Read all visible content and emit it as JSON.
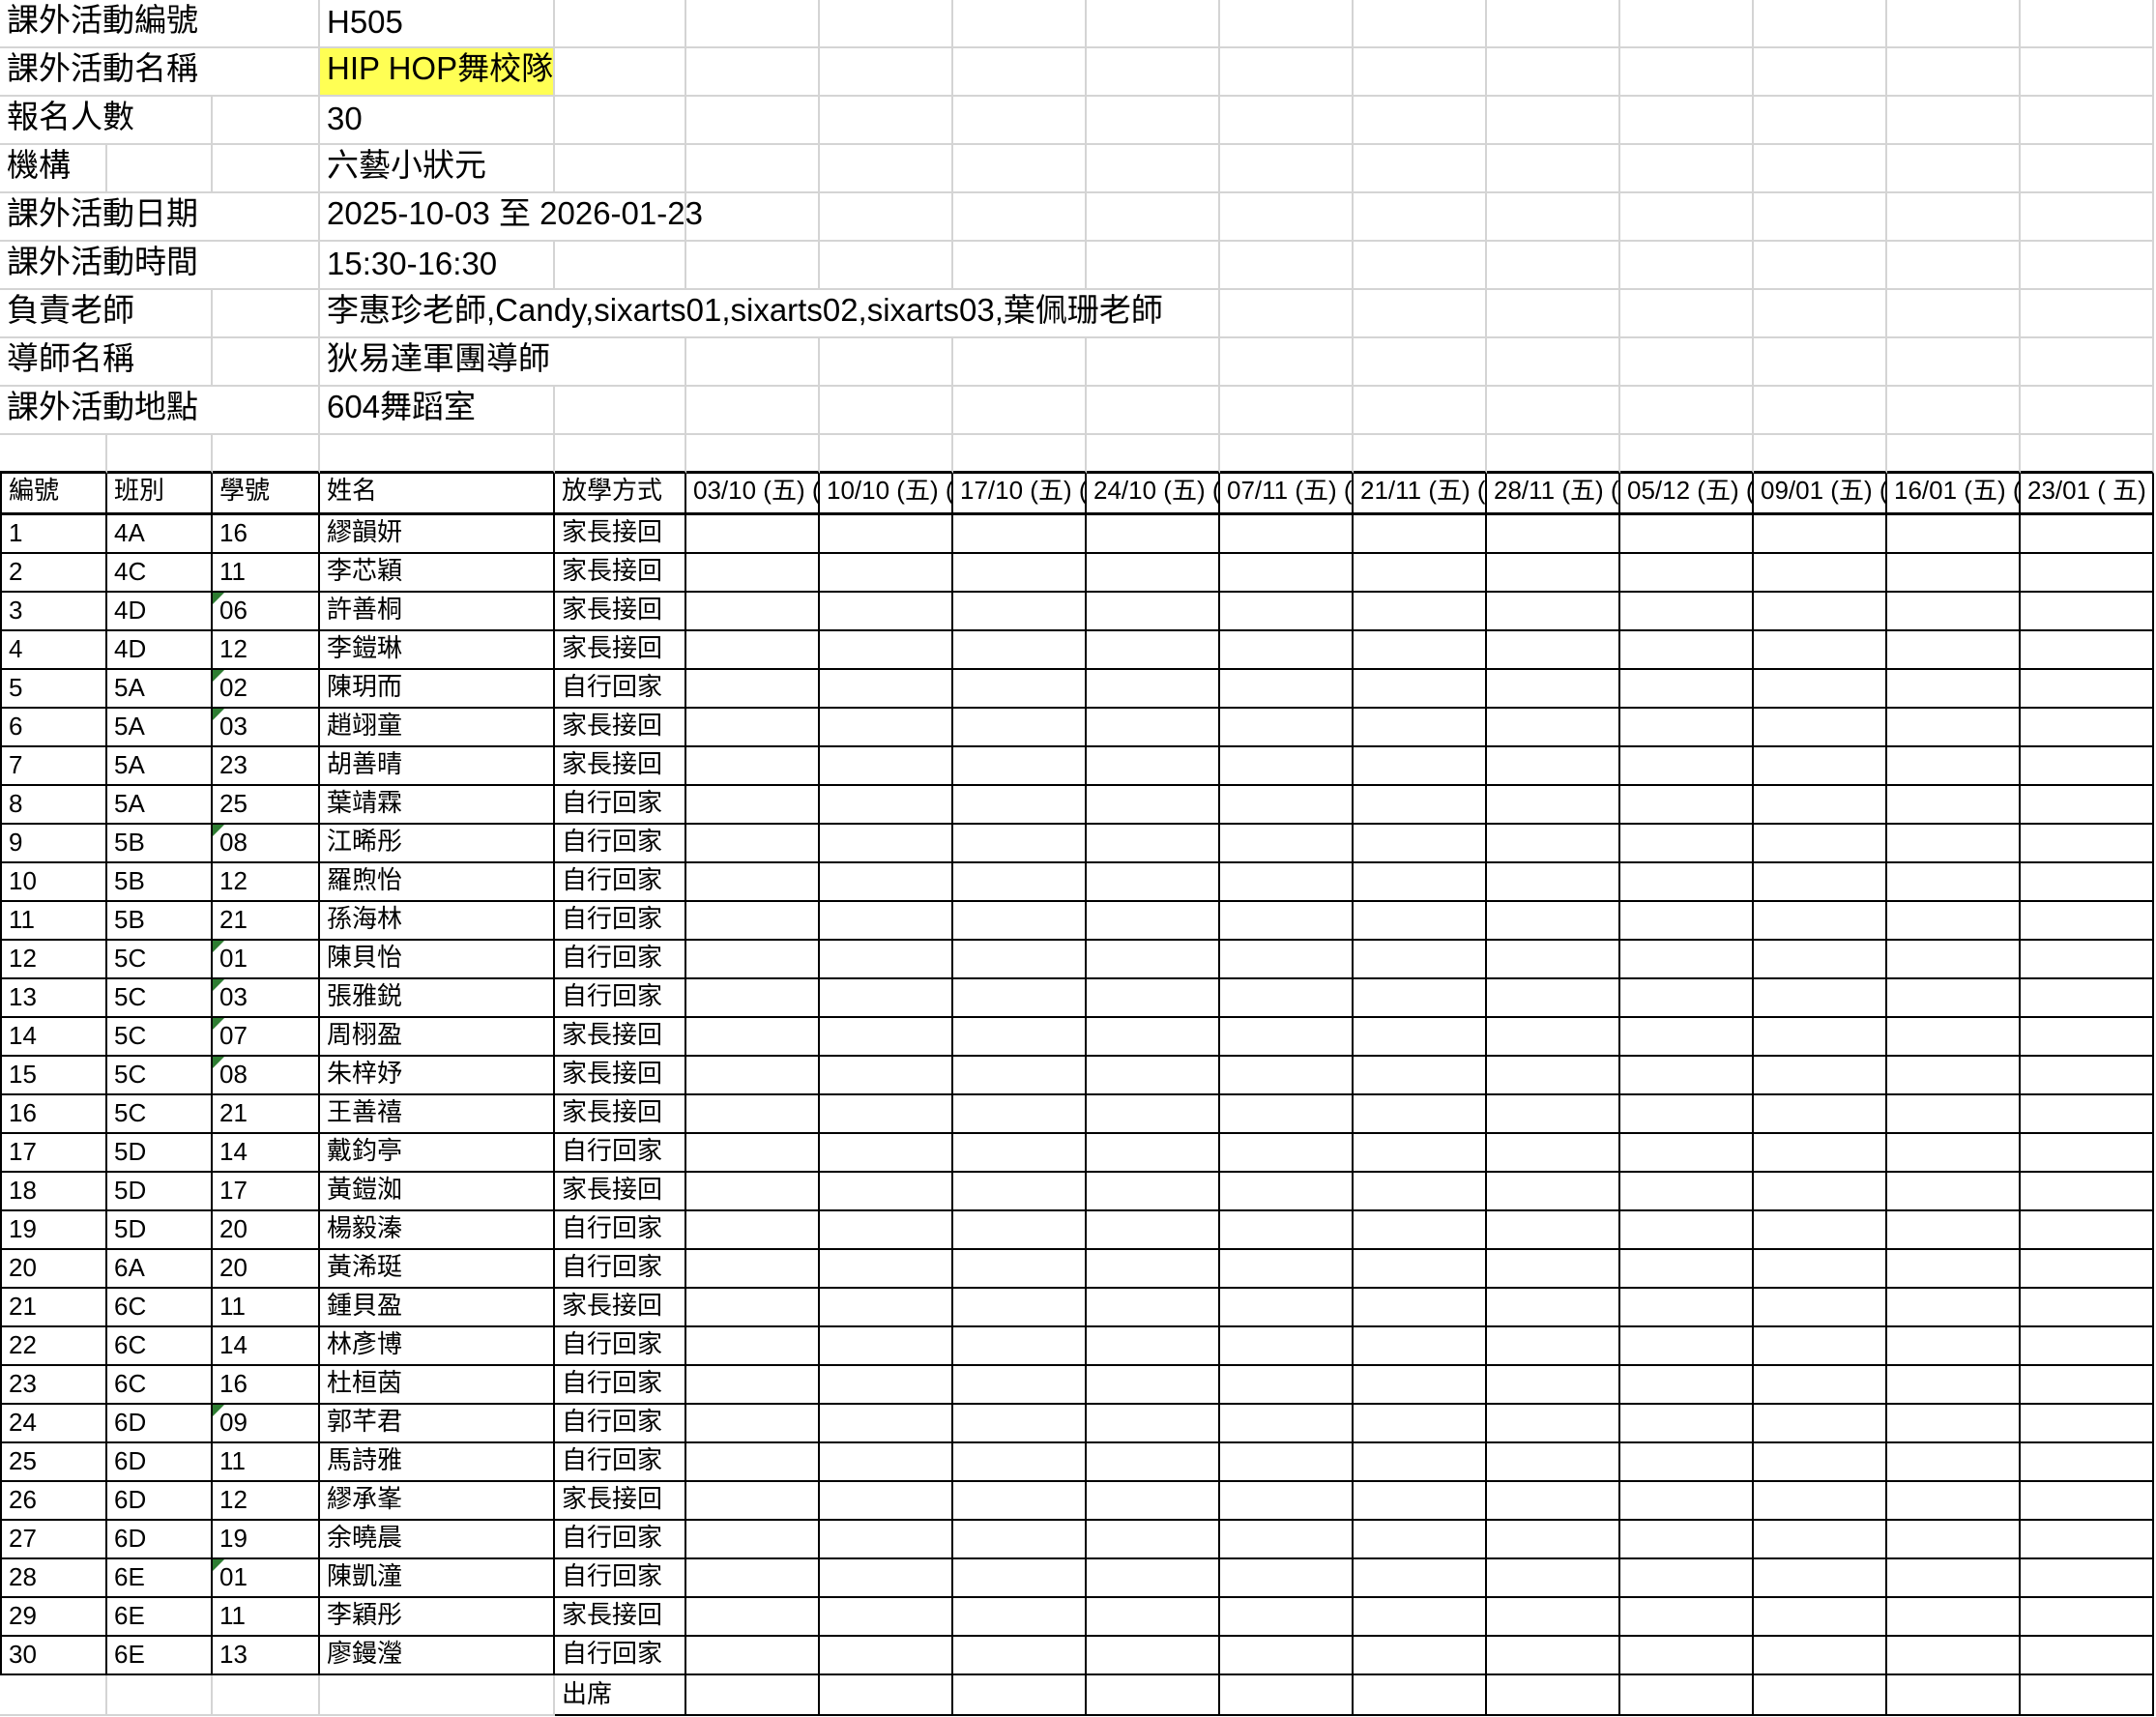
{
  "info": [
    {
      "label": "課外活動編號",
      "value": "H505"
    },
    {
      "label": "課外活動名稱",
      "value": "HIP HOP舞校隊"
    },
    {
      "label": "報名人數",
      "value": "30"
    },
    {
      "label": "機構",
      "value": "六藝小狀元"
    },
    {
      "label": "課外活動日期",
      "value": "2025-10-03 至 2026-01-23"
    },
    {
      "label": "課外活動時間",
      "value": "15:30-16:30"
    },
    {
      "label": "負責老師",
      "value": "李惠珍老師,Candy,sixarts01,sixarts02,sixarts03,葉佩珊老師"
    },
    {
      "label": "導師名稱",
      "value": "狄易達軍團導師"
    },
    {
      "label": "課外活動地點",
      "value": "604舞蹈室"
    }
  ],
  "highlight_color": "#ffff54",
  "text_number_marker_color": "#2e7d32",
  "headers": [
    "編號",
    "班別",
    "學號",
    "姓名",
    "放學方式",
    "03/10 (五) (",
    "10/10 (五) (",
    "17/10 (五) (",
    "24/10 (五) (",
    "07/11 (五) (",
    "21/11 (五) (",
    "28/11 (五) (",
    "05/12 (五) (",
    "09/01 (五) (",
    "16/01 (五) (",
    "23/01 ( 五)"
  ],
  "students": [
    {
      "no": "1",
      "class": "4A",
      "id": "16",
      "name": "繆韻妍",
      "dismissal": "家長接回",
      "id_text_marker": false
    },
    {
      "no": "2",
      "class": "4C",
      "id": "11",
      "name": "李芯穎",
      "dismissal": "家長接回",
      "id_text_marker": false
    },
    {
      "no": "3",
      "class": "4D",
      "id": "06",
      "name": "許善桐",
      "dismissal": "家長接回",
      "id_text_marker": true
    },
    {
      "no": "4",
      "class": "4D",
      "id": "12",
      "name": "李鎧琳",
      "dismissal": "家長接回",
      "id_text_marker": false
    },
    {
      "no": "5",
      "class": "5A",
      "id": "02",
      "name": "陳玥而",
      "dismissal": "自行回家",
      "id_text_marker": true
    },
    {
      "no": "6",
      "class": "5A",
      "id": "03",
      "name": "趙翊童",
      "dismissal": "家長接回",
      "id_text_marker": true
    },
    {
      "no": "7",
      "class": "5A",
      "id": "23",
      "name": "胡善晴",
      "dismissal": "家長接回",
      "id_text_marker": false
    },
    {
      "no": "8",
      "class": "5A",
      "id": "25",
      "name": "葉靖霖",
      "dismissal": "自行回家",
      "id_text_marker": false
    },
    {
      "no": "9",
      "class": "5B",
      "id": "08",
      "name": "江晞彤",
      "dismissal": "自行回家",
      "id_text_marker": true
    },
    {
      "no": "10",
      "class": "5B",
      "id": "12",
      "name": "羅煦怡",
      "dismissal": "自行回家",
      "id_text_marker": false
    },
    {
      "no": "11",
      "class": "5B",
      "id": "21",
      "name": "孫海林",
      "dismissal": "自行回家",
      "id_text_marker": false
    },
    {
      "no": "12",
      "class": "5C",
      "id": "01",
      "name": "陳貝怡",
      "dismissal": "自行回家",
      "id_text_marker": true
    },
    {
      "no": "13",
      "class": "5C",
      "id": "03",
      "name": "張雅鋭",
      "dismissal": "自行回家",
      "id_text_marker": true
    },
    {
      "no": "14",
      "class": "5C",
      "id": "07",
      "name": "周栩盈",
      "dismissal": "家長接回",
      "id_text_marker": true
    },
    {
      "no": "15",
      "class": "5C",
      "id": "08",
      "name": "朱梓妤",
      "dismissal": "家長接回",
      "id_text_marker": true
    },
    {
      "no": "16",
      "class": "5C",
      "id": "21",
      "name": "王善禧",
      "dismissal": "家長接回",
      "id_text_marker": false
    },
    {
      "no": "17",
      "class": "5D",
      "id": "14",
      "name": "戴鈞亭",
      "dismissal": "自行回家",
      "id_text_marker": false
    },
    {
      "no": "18",
      "class": "5D",
      "id": "17",
      "name": "黃鎧洳",
      "dismissal": "家長接回",
      "id_text_marker": false
    },
    {
      "no": "19",
      "class": "5D",
      "id": "20",
      "name": "楊毅溱",
      "dismissal": "自行回家",
      "id_text_marker": false
    },
    {
      "no": "20",
      "class": "6A",
      "id": "20",
      "name": "黃浠珽",
      "dismissal": "自行回家",
      "id_text_marker": false
    },
    {
      "no": "21",
      "class": "6C",
      "id": "11",
      "name": "鍾貝盈",
      "dismissal": "家長接回",
      "id_text_marker": false
    },
    {
      "no": "22",
      "class": "6C",
      "id": "14",
      "name": "林彥博",
      "dismissal": "自行回家",
      "id_text_marker": false
    },
    {
      "no": "23",
      "class": "6C",
      "id": "16",
      "name": "杜桓茵",
      "dismissal": "自行回家",
      "id_text_marker": false
    },
    {
      "no": "24",
      "class": "6D",
      "id": "09",
      "name": "郭芊君",
      "dismissal": "自行回家",
      "id_text_marker": true
    },
    {
      "no": "25",
      "class": "6D",
      "id": "11",
      "name": "馬詩雅",
      "dismissal": "自行回家",
      "id_text_marker": false
    },
    {
      "no": "26",
      "class": "6D",
      "id": "12",
      "name": "繆承峯",
      "dismissal": "家長接回",
      "id_text_marker": false
    },
    {
      "no": "27",
      "class": "6D",
      "id": "19",
      "name": "余曉晨",
      "dismissal": "自行回家",
      "id_text_marker": false
    },
    {
      "no": "28",
      "class": "6E",
      "id": "01",
      "name": "陳凱潼",
      "dismissal": "自行回家",
      "id_text_marker": true
    },
    {
      "no": "29",
      "class": "6E",
      "id": "11",
      "name": "李穎彤",
      "dismissal": "家長接回",
      "id_text_marker": false
    },
    {
      "no": "30",
      "class": "6E",
      "id": "13",
      "name": "廖鏝瀅",
      "dismissal": "自行回家",
      "id_text_marker": false
    }
  ],
  "footer_label": "出席"
}
